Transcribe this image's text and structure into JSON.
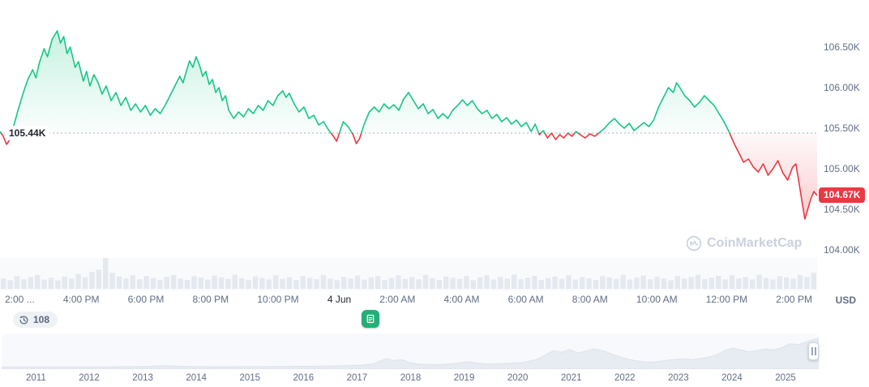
{
  "chart": {
    "open_label": "105.44K",
    "current_label": "104.67K",
    "currency": "USD",
    "watermark": "CoinMarketCap"
  },
  "toolbar": {
    "history_count": "108"
  },
  "chart_data": {
    "type": "line",
    "title": "",
    "baseline": 105.44,
    "current": 104.67,
    "y_ticks": [
      {
        "label": "106.50K",
        "value": 106.5
      },
      {
        "label": "106.00K",
        "value": 106.0
      },
      {
        "label": "105.50K",
        "value": 105.5
      },
      {
        "label": "105.00K",
        "value": 105.0
      },
      {
        "label": "104.50K",
        "value": 104.5
      },
      {
        "label": "104.00K",
        "value": 104.0
      }
    ],
    "x_ticks": [
      {
        "label": "2:00 ..."
      },
      {
        "label": "4:00 PM"
      },
      {
        "label": "6:00 PM"
      },
      {
        "label": "8:00 PM"
      },
      {
        "label": "10:00 PM"
      },
      {
        "label": "4 Jun",
        "strong": true
      },
      {
        "label": "2:00 AM"
      },
      {
        "label": "4:00 AM"
      },
      {
        "label": "6:00 AM"
      },
      {
        "label": "8:00 AM"
      },
      {
        "label": "10:00 AM"
      },
      {
        "label": "12:00 PM"
      },
      {
        "label": "2:00 PM"
      }
    ],
    "colors": {
      "up": "#16c784",
      "down": "#ea3943",
      "baseline": "#a8b1c2",
      "volume": "#e4e8ef",
      "minimap": "#e7ebf2"
    },
    "series": [
      {
        "name": "price-kUSD",
        "points": [
          [
            0,
            105.46
          ],
          [
            0.4,
            105.4
          ],
          [
            0.8,
            105.3
          ],
          [
            1.2,
            105.36
          ],
          [
            1.6,
            105.5
          ],
          [
            2.2,
            105.72
          ],
          [
            2.8,
            105.92
          ],
          [
            3.4,
            106.1
          ],
          [
            4.0,
            106.22
          ],
          [
            4.4,
            106.12
          ],
          [
            4.8,
            106.3
          ],
          [
            5.4,
            106.48
          ],
          [
            5.8,
            106.38
          ],
          [
            6.4,
            106.6
          ],
          [
            7.0,
            106.7
          ],
          [
            7.4,
            106.55
          ],
          [
            7.8,
            106.63
          ],
          [
            8.2,
            106.42
          ],
          [
            8.6,
            106.5
          ],
          [
            9.2,
            106.25
          ],
          [
            9.6,
            106.32
          ],
          [
            10.2,
            106.08
          ],
          [
            10.6,
            106.2
          ],
          [
            11.0,
            106.02
          ],
          [
            11.5,
            106.16
          ],
          [
            12.0,
            106.06
          ],
          [
            12.5,
            105.92
          ],
          [
            13.0,
            106.02
          ],
          [
            13.6,
            105.84
          ],
          [
            14.2,
            105.94
          ],
          [
            14.8,
            105.78
          ],
          [
            15.4,
            105.88
          ],
          [
            16.0,
            105.72
          ],
          [
            16.6,
            105.8
          ],
          [
            17.2,
            105.7
          ],
          [
            17.8,
            105.78
          ],
          [
            18.4,
            105.66
          ],
          [
            19.0,
            105.74
          ],
          [
            19.6,
            105.68
          ],
          [
            20.2,
            105.78
          ],
          [
            20.8,
            105.9
          ],
          [
            21.4,
            106.02
          ],
          [
            22.0,
            106.14
          ],
          [
            22.4,
            106.06
          ],
          [
            22.8,
            106.2
          ],
          [
            23.2,
            106.33
          ],
          [
            23.6,
            106.25
          ],
          [
            24.0,
            106.38
          ],
          [
            24.4,
            106.28
          ],
          [
            24.8,
            106.14
          ],
          [
            25.2,
            106.2
          ],
          [
            25.6,
            106.04
          ],
          [
            26.0,
            106.1
          ],
          [
            26.4,
            105.94
          ],
          [
            26.8,
            106.0
          ],
          [
            27.2,
            105.84
          ],
          [
            27.6,
            105.9
          ],
          [
            28.0,
            105.72
          ],
          [
            28.6,
            105.62
          ],
          [
            29.2,
            105.7
          ],
          [
            29.8,
            105.64
          ],
          [
            30.4,
            105.74
          ],
          [
            31.0,
            105.68
          ],
          [
            31.6,
            105.78
          ],
          [
            32.2,
            105.72
          ],
          [
            32.8,
            105.84
          ],
          [
            33.4,
            105.78
          ],
          [
            34.0,
            105.9
          ],
          [
            34.6,
            105.96
          ],
          [
            35.0,
            105.88
          ],
          [
            35.4,
            105.93
          ],
          [
            36.0,
            105.8
          ],
          [
            36.6,
            105.7
          ],
          [
            37.2,
            105.76
          ],
          [
            37.8,
            105.62
          ],
          [
            38.4,
            105.66
          ],
          [
            39.0,
            105.54
          ],
          [
            39.6,
            105.58
          ],
          [
            40.2,
            105.48
          ],
          [
            40.8,
            105.4
          ],
          [
            41.2,
            105.34
          ],
          [
            41.6,
            105.46
          ],
          [
            42.0,
            105.58
          ],
          [
            42.6,
            105.52
          ],
          [
            43.2,
            105.42
          ],
          [
            43.6,
            105.31
          ],
          [
            44.0,
            105.37
          ],
          [
            44.6,
            105.56
          ],
          [
            45.2,
            105.7
          ],
          [
            45.8,
            105.76
          ],
          [
            46.4,
            105.7
          ],
          [
            47.0,
            105.8
          ],
          [
            47.6,
            105.74
          ],
          [
            48.2,
            105.79
          ],
          [
            48.8,
            105.72
          ],
          [
            49.4,
            105.86
          ],
          [
            50.0,
            105.94
          ],
          [
            50.6,
            105.84
          ],
          [
            51.2,
            105.74
          ],
          [
            51.8,
            105.8
          ],
          [
            52.4,
            105.68
          ],
          [
            53.0,
            105.73
          ],
          [
            53.6,
            105.62
          ],
          [
            54.2,
            105.68
          ],
          [
            54.8,
            105.62
          ],
          [
            55.4,
            105.72
          ],
          [
            56.0,
            105.78
          ],
          [
            56.6,
            105.85
          ],
          [
            57.2,
            105.78
          ],
          [
            57.8,
            105.84
          ],
          [
            58.4,
            105.74
          ],
          [
            59.0,
            105.68
          ],
          [
            59.6,
            105.72
          ],
          [
            60.2,
            105.62
          ],
          [
            60.8,
            105.67
          ],
          [
            61.4,
            105.58
          ],
          [
            62.0,
            105.63
          ],
          [
            62.6,
            105.55
          ],
          [
            63.2,
            105.6
          ],
          [
            63.8,
            105.52
          ],
          [
            64.4,
            105.57
          ],
          [
            65.0,
            105.46
          ],
          [
            65.5,
            105.55
          ],
          [
            66.0,
            105.42
          ],
          [
            66.5,
            105.47
          ],
          [
            67.0,
            105.38
          ],
          [
            67.5,
            105.44
          ],
          [
            68.0,
            105.36
          ],
          [
            68.5,
            105.42
          ],
          [
            69.0,
            105.38
          ],
          [
            69.5,
            105.44
          ],
          [
            70.0,
            105.4
          ],
          [
            70.5,
            105.46
          ],
          [
            71.0,
            105.42
          ],
          [
            71.6,
            105.38
          ],
          [
            72.2,
            105.43
          ],
          [
            72.8,
            105.4
          ],
          [
            73.4,
            105.45
          ],
          [
            74.0,
            105.5
          ],
          [
            74.6,
            105.57
          ],
          [
            75.2,
            105.62
          ],
          [
            75.8,
            105.55
          ],
          [
            76.4,
            105.5
          ],
          [
            77.0,
            105.56
          ],
          [
            77.6,
            105.47
          ],
          [
            78.2,
            105.52
          ],
          [
            78.8,
            105.57
          ],
          [
            79.4,
            105.52
          ],
          [
            80.0,
            105.6
          ],
          [
            80.6,
            105.76
          ],
          [
            81.2,
            105.88
          ],
          [
            81.8,
            106.0
          ],
          [
            82.4,
            105.94
          ],
          [
            82.8,
            106.06
          ],
          [
            83.2,
            106.0
          ],
          [
            83.8,
            105.9
          ],
          [
            84.4,
            105.84
          ],
          [
            85.0,
            105.76
          ],
          [
            85.6,
            105.82
          ],
          [
            86.2,
            105.9
          ],
          [
            86.8,
            105.84
          ],
          [
            87.4,
            105.78
          ],
          [
            88.0,
            105.68
          ],
          [
            88.6,
            105.58
          ],
          [
            89.2,
            105.46
          ],
          [
            89.8,
            105.32
          ],
          [
            90.4,
            105.2
          ],
          [
            91.0,
            105.08
          ],
          [
            91.6,
            105.12
          ],
          [
            92.2,
            105.02
          ],
          [
            92.8,
            104.96
          ],
          [
            93.4,
            105.06
          ],
          [
            94.0,
            104.92
          ],
          [
            94.6,
            105.0
          ],
          [
            95.2,
            105.1
          ],
          [
            95.8,
            104.95
          ],
          [
            96.4,
            104.86
          ],
          [
            97.0,
            105.02
          ],
          [
            97.4,
            105.06
          ],
          [
            97.8,
            104.82
          ],
          [
            98.2,
            104.56
          ],
          [
            98.5,
            104.38
          ],
          [
            98.8,
            104.48
          ],
          [
            99.2,
            104.62
          ],
          [
            99.6,
            104.72
          ],
          [
            100,
            104.67
          ]
        ]
      }
    ],
    "volume": [
      0.34,
      0.28,
      0.41,
      0.31,
      0.38,
      0.45,
      0.3,
      0.36,
      0.27,
      0.4,
      0.33,
      0.48,
      0.38,
      0.55,
      0.62,
      1.0,
      0.52,
      0.4,
      0.34,
      0.44,
      0.31,
      0.42,
      0.35,
      0.28,
      0.39,
      0.45,
      0.33,
      0.29,
      0.41,
      0.36,
      0.3,
      0.43,
      0.37,
      0.32,
      0.46,
      0.34,
      0.28,
      0.4,
      0.35,
      0.3,
      0.44,
      0.32,
      0.38,
      0.29,
      0.42,
      0.36,
      0.31,
      0.45,
      0.33,
      0.28,
      0.39,
      0.34,
      0.43,
      0.3,
      0.37,
      0.41,
      0.29,
      0.35,
      0.44,
      0.32,
      0.38,
      0.31,
      0.45,
      0.34,
      0.29,
      0.4,
      0.36,
      0.32,
      0.42,
      0.28,
      0.37,
      0.44,
      0.3,
      0.39,
      0.33,
      0.46,
      0.31,
      0.36,
      0.42,
      0.29,
      0.35,
      0.4,
      0.32,
      0.44,
      0.3,
      0.38,
      0.34,
      0.29,
      0.41,
      0.37,
      0.32,
      0.45,
      0.3,
      0.36,
      0.43,
      0.31,
      0.39,
      0.34,
      0.28,
      0.42,
      0.33,
      0.38,
      0.45,
      0.31,
      0.36,
      0.42,
      0.3,
      0.44,
      0.34,
      0.39,
      0.31,
      0.46,
      0.35,
      0.3,
      0.41,
      0.37,
      0.33,
      0.45,
      0.38,
      0.52
    ],
    "minimap": {
      "years": [
        "2011",
        "2012",
        "2013",
        "2014",
        "2015",
        "2016",
        "2017",
        "2018",
        "2019",
        "2020",
        "2021",
        "2022",
        "2023",
        "2024",
        "2025"
      ],
      "points": [
        [
          0,
          0.02
        ],
        [
          3,
          0.02
        ],
        [
          6,
          0.02
        ],
        [
          9,
          0.02
        ],
        [
          12,
          0.02
        ],
        [
          14,
          0.025
        ],
        [
          16,
          0.03
        ],
        [
          18,
          0.04
        ],
        [
          20,
          0.06
        ],
        [
          21,
          0.05
        ],
        [
          22,
          0.04
        ],
        [
          24,
          0.03
        ],
        [
          26,
          0.025
        ],
        [
          28,
          0.025
        ],
        [
          30,
          0.03
        ],
        [
          32,
          0.03
        ],
        [
          34,
          0.035
        ],
        [
          36,
          0.04
        ],
        [
          38,
          0.045
        ],
        [
          40,
          0.05
        ],
        [
          42,
          0.06
        ],
        [
          44,
          0.08
        ],
        [
          45.5,
          0.12
        ],
        [
          47,
          0.3
        ],
        [
          48,
          0.24
        ],
        [
          49,
          0.27
        ],
        [
          50,
          0.16
        ],
        [
          51,
          0.12
        ],
        [
          52.5,
          0.1
        ],
        [
          54,
          0.1
        ],
        [
          55.5,
          0.14
        ],
        [
          57,
          0.2
        ],
        [
          58,
          0.16
        ],
        [
          59.5,
          0.12
        ],
        [
          61,
          0.13
        ],
        [
          62.5,
          0.15
        ],
        [
          64,
          0.18
        ],
        [
          65.5,
          0.28
        ],
        [
          66.5,
          0.42
        ],
        [
          67.5,
          0.58
        ],
        [
          68.5,
          0.52
        ],
        [
          69.5,
          0.62
        ],
        [
          70.5,
          0.5
        ],
        [
          71.5,
          0.56
        ],
        [
          72.5,
          0.64
        ],
        [
          73.5,
          0.58
        ],
        [
          74.5,
          0.48
        ],
        [
          75.5,
          0.38
        ],
        [
          76.5,
          0.3
        ],
        [
          77.5,
          0.24
        ],
        [
          78.5,
          0.2
        ],
        [
          79.5,
          0.18
        ],
        [
          80.5,
          0.21
        ],
        [
          81.5,
          0.25
        ],
        [
          82.5,
          0.28
        ],
        [
          83.5,
          0.3
        ],
        [
          84.5,
          0.27
        ],
        [
          85.5,
          0.31
        ],
        [
          86.5,
          0.35
        ],
        [
          87.5,
          0.44
        ],
        [
          88.5,
          0.58
        ],
        [
          89.5,
          0.66
        ],
        [
          90.5,
          0.6
        ],
        [
          91.5,
          0.54
        ],
        [
          92.5,
          0.58
        ],
        [
          93.5,
          0.64
        ],
        [
          94.5,
          0.6
        ],
        [
          95.5,
          0.68
        ],
        [
          96.5,
          0.82
        ],
        [
          97.5,
          0.78
        ],
        [
          98.5,
          0.88
        ],
        [
          99.3,
          0.96
        ],
        [
          100,
          1.0
        ]
      ]
    }
  }
}
